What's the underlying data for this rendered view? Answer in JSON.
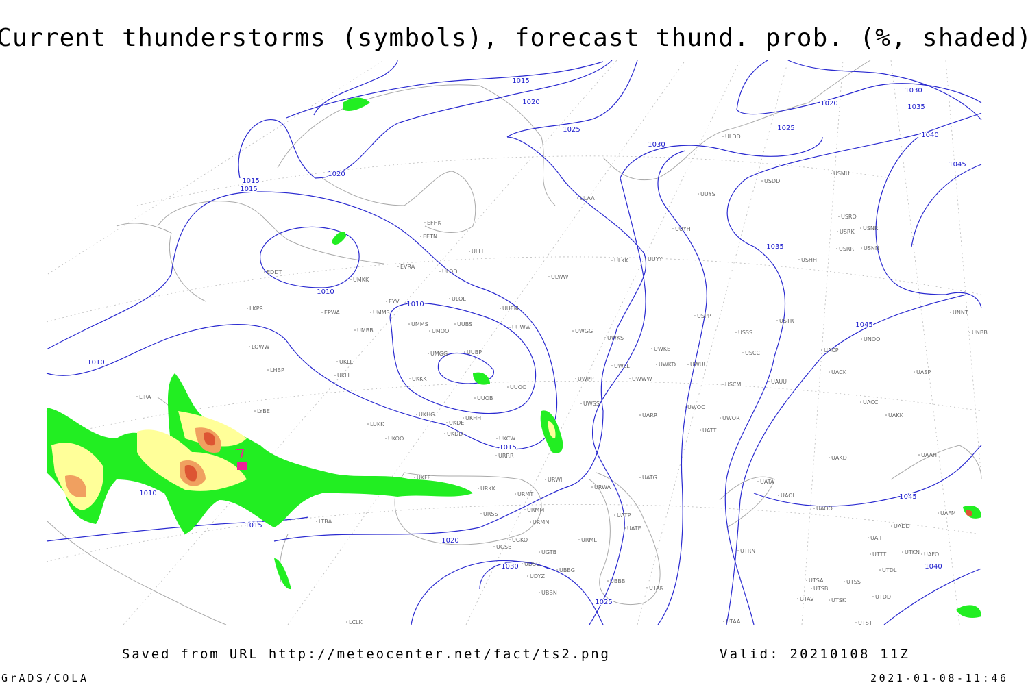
{
  "header": {
    "title": "Current thunderstorms (symbols), forecast thund. prob. (%, shaded)"
  },
  "map": {
    "isobar_labels": [
      "1015",
      "1020",
      "1025",
      "1030",
      "1035",
      "1020",
      "1025",
      "1040",
      "1030",
      "1045",
      "1020",
      "1015",
      "1015",
      "1035",
      "1010",
      "1010",
      "1045",
      "1010",
      "1015",
      "1010",
      "1045",
      "1015",
      "1020",
      "1030",
      "1040",
      "1025"
    ],
    "stations": [
      "ULDD",
      "USMU",
      "USDD",
      "UUYS",
      "ULAA",
      "USRO",
      "USRK",
      "USNR",
      "UUYH",
      "USRR",
      "USNN",
      "USHH",
      "ULKK",
      "UUYY",
      "EFHK",
      "EETN",
      "ULLI",
      "EVRA",
      "ULOD",
      "EDDT",
      "UMKK",
      "ULWW",
      "ULOL",
      "EYVI",
      "UUEM",
      "LKPR",
      "EPWA",
      "UMMS",
      "UMMS",
      "UUBS",
      "UUWW",
      "UMOO",
      "USPP",
      "USTR",
      "UNNT",
      "UNBB",
      "UMBB",
      "UWGG",
      "USSS",
      "UNOO",
      "UWKS",
      "LOWW",
      "UMGG",
      "UUBP",
      "UWKE",
      "UACP",
      "USCC",
      "UWKD",
      "UWUU",
      "UWLL",
      "UKLL",
      "LHBP",
      "UKLI",
      "UACK",
      "UASP",
      "UKKK",
      "UWWW",
      "UWPP",
      "USCM",
      "UAUU",
      "UUOO",
      "LIRA",
      "UUOB",
      "UACC",
      "UWSS",
      "LYBE",
      "UKHG",
      "UKHH",
      "UAKK",
      "UWOO",
      "UARR",
      "UWOR",
      "LUKK",
      "UKDE",
      "UATT",
      "UKOO",
      "UKDD",
      "UKCW",
      "URRR",
      "UAKD",
      "UAAH",
      "UKFF",
      "UATG",
      "UATA",
      "URWI",
      "URKK",
      "URMT",
      "URWA",
      "UAOL",
      "UAOO",
      "UAFM",
      "URSS",
      "URMM",
      "UATP",
      "URMN",
      "UATE",
      "LTBA",
      "UADD",
      "UAII",
      "UGKO",
      "URML",
      "UGSB",
      "UTTT",
      "UTKN",
      "UAFO",
      "UGTB",
      "UTRN",
      "UDSG",
      "UBBG",
      "UDYZ",
      "UTDL",
      "UBBB",
      "UTSA",
      "UTSS",
      "UTSB",
      "UTAK",
      "UBBN",
      "UTAV",
      "UTSK",
      "UTDD",
      "LCLK",
      "UTAA",
      "UTST"
    ]
  },
  "footer": {
    "source": "Saved from URL http://meteocenter.net/fact/ts2.png",
    "valid": "Valid: 20210108 11Z",
    "software": "GrADS/COLA",
    "timestamp": "2021-01-08-11:46"
  }
}
